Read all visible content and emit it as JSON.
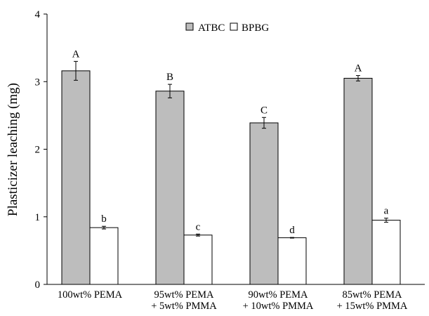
{
  "chart_data": {
    "type": "bar",
    "title": "",
    "xlabel": "",
    "ylabel": "Plasticizer leaching (mg)",
    "ylim": [
      0,
      4
    ],
    "yticks": [
      "0",
      "1",
      "2",
      "3",
      "4"
    ],
    "categories": [
      [
        "100wt% PEMA"
      ],
      [
        "95wt% PEMA",
        "+ 5wt% PMMA"
      ],
      [
        "90wt% PEMA",
        "+ 10wt% PMMA"
      ],
      [
        "85wt% PEMA",
        "+ 15wt% PMMA"
      ]
    ],
    "series": [
      {
        "name": "ATBC",
        "color": "#bdbdbd",
        "values": [
          3.16,
          2.86,
          2.39,
          3.05
        ],
        "errors": [
          0.14,
          0.1,
          0.08,
          0.04
        ],
        "labels": [
          "A",
          "B",
          "C",
          "A"
        ]
      },
      {
        "name": "BPBG",
        "color": "#ffffff",
        "values": [
          0.84,
          0.73,
          0.69,
          0.95
        ],
        "errors": [
          0.02,
          0.015,
          0.005,
          0.03
        ],
        "labels": [
          "b",
          "c",
          "d",
          "a"
        ]
      }
    ],
    "grid": false,
    "legend": {
      "position": "top-center",
      "marker_glyph": "■"
    }
  }
}
